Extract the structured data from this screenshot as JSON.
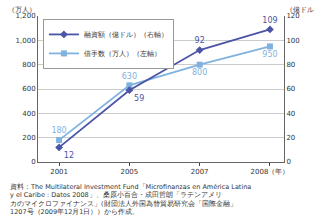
{
  "chart_data": {
    "type": "line",
    "categories": [
      "2001",
      "2005",
      "2007",
      "2008（年）"
    ],
    "series": [
      {
        "name": "融資額（億ドル）（右軸）",
        "color": "#4b55a5",
        "marker": "diamond",
        "axis": "y2",
        "values": [
          12,
          59,
          92,
          109
        ]
      },
      {
        "name": "借手数（万人）（左軸）",
        "color": "#7fb2de",
        "marker": "square",
        "values": [
          180,
          630,
          800,
          950
        ]
      }
    ],
    "ylabel": "（万人）",
    "y2label": "（億ドル）",
    "ylim": [
      0,
      1200
    ],
    "yticks": [
      0,
      200,
      400,
      600,
      800,
      {
        "value": 1000,
        "label": "1,000"
      },
      {
        "value": 1200,
        "label": "1,200"
      }
    ],
    "y2lim": [
      0,
      120
    ],
    "y2ticks": [
      0,
      20,
      40,
      60,
      80,
      100,
      120
    ],
    "grid": true,
    "legend": "upper left",
    "data_labels": true,
    "source": [
      "資料：The Multilateral Investment Fund「Microfinanzas en América Latina",
      "y el Caribe : Datos 2008」、桑原小百合・成田哲朗「ラテンアメリ",
      "カのマイクロファイナンス」(財団法人外国為替貿易研究会「国際金融」",
      "1207号（2009年12月1日））から作成。"
    ]
  }
}
